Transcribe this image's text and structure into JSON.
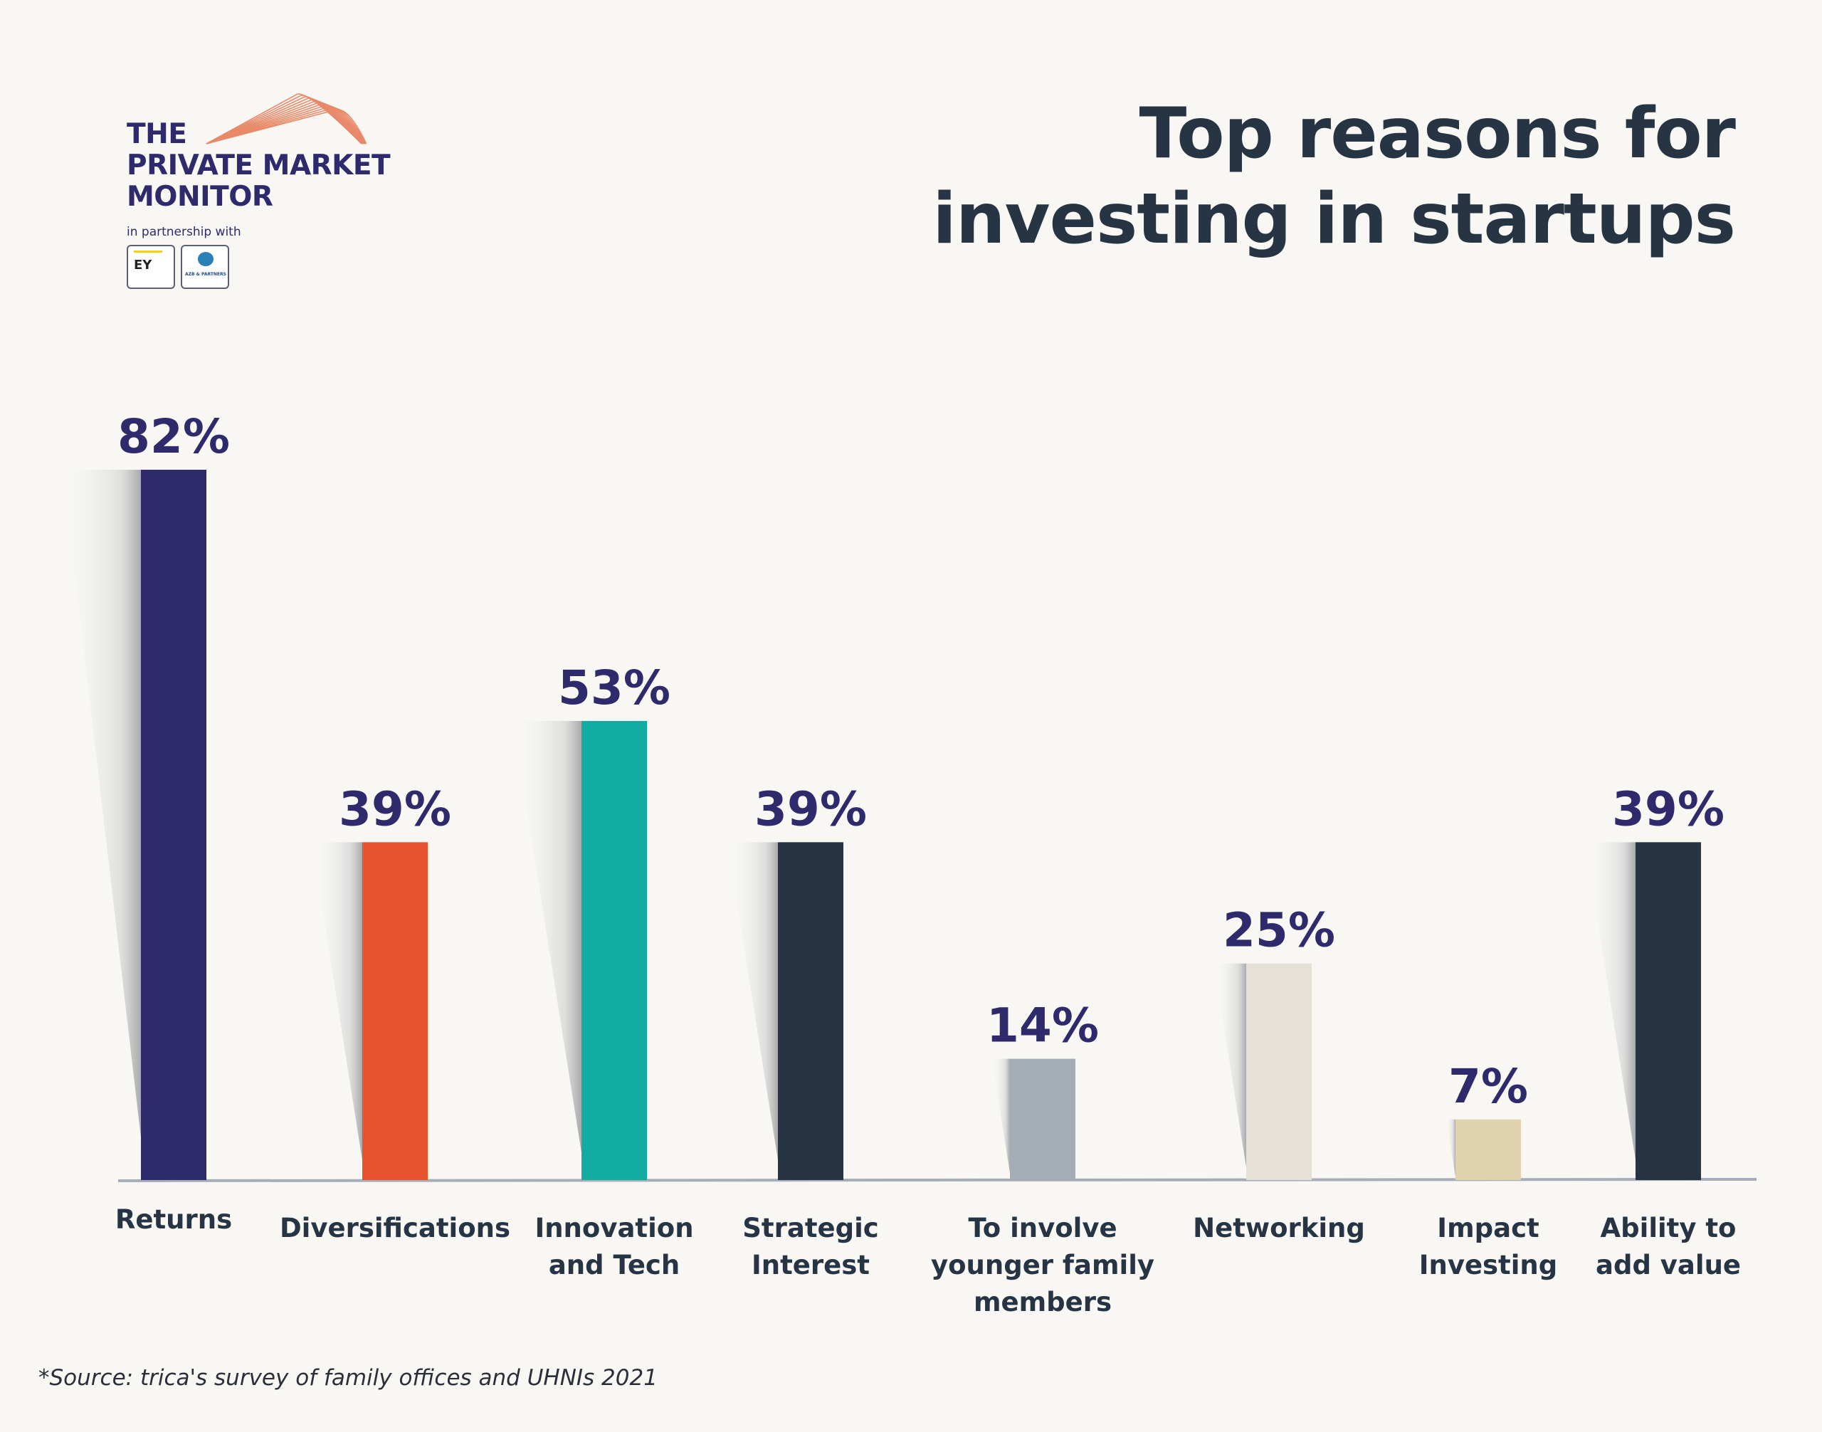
{
  "logo": {
    "lines": [
      "THE",
      "PRIVATE MARKET",
      "MONITOR"
    ],
    "partner_text": "in partnership with",
    "partners": [
      "EY",
      "AZB & PARTNERS"
    ]
  },
  "title_lines": [
    "Top reasons for",
    "investing in startups"
  ],
  "source": "*Source: trica's survey of family offices and UHNIs 2021",
  "colors": {
    "background": "#f8f7f3",
    "navy": "#2e2a6b",
    "orange": "#e5532f",
    "teal": "#13aca3",
    "dark": "#263443",
    "grey": "#a4acb6",
    "beige": "#e6e1d7",
    "sand": "#e0d3ae",
    "baseline": "#a7adb8"
  },
  "chart_data": {
    "type": "bar",
    "title": "Top reasons for investing in startups",
    "categories": [
      [
        "Returns"
      ],
      [
        "Diversifications"
      ],
      [
        "Innovation",
        "and Tech"
      ],
      [
        "Strategic",
        "Interest"
      ],
      [
        "To involve",
        "younger family",
        "members"
      ],
      [
        "Networking"
      ],
      [
        "Impact",
        "Investing"
      ],
      [
        "Ability to",
        "add value"
      ]
    ],
    "values": [
      82,
      39,
      53,
      39,
      14,
      25,
      7,
      39
    ],
    "value_labels": [
      "82%",
      "39%",
      "53%",
      "39%",
      "14%",
      "25%",
      "7%",
      "39%"
    ],
    "bar_colors": [
      "#2e2a6b",
      "#e5532f",
      "#13aca3",
      "#263443",
      "#a4acb6",
      "#e6e1d7",
      "#e0d3ae",
      "#263443"
    ],
    "xlabel": "",
    "ylabel": "",
    "ylim": [
      0,
      82
    ],
    "grid": false,
    "legend": "none"
  }
}
